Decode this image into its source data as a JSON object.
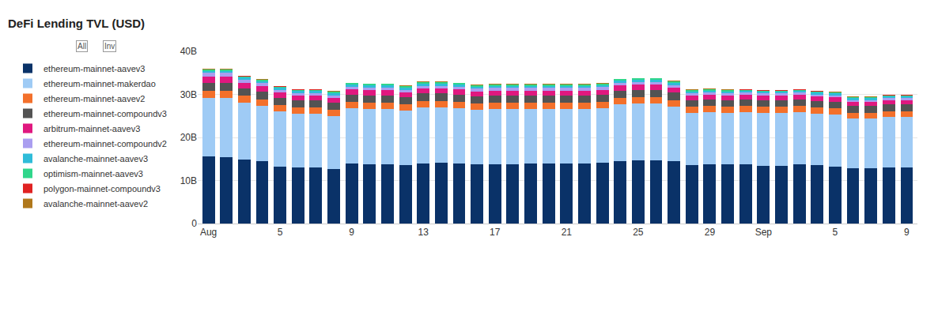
{
  "chart_data": {
    "type": "bar",
    "title": "DeFi Lending TVL (USD)",
    "stacked": true,
    "grid": true,
    "legend": "left",
    "annotations": [
      "All",
      "Inv"
    ],
    "categories": [
      "Aug",
      null,
      null,
      null,
      "5",
      null,
      null,
      null,
      "9",
      null,
      null,
      null,
      "13",
      null,
      null,
      null,
      "17",
      null,
      null,
      null,
      "21",
      null,
      null,
      null,
      "25",
      null,
      null,
      null,
      "29",
      null,
      null,
      "Sep",
      null,
      null,
      null,
      "5",
      null,
      null,
      null,
      "9"
    ],
    "ylim": [
      0,
      40000000000.0
    ],
    "yticks": [
      0,
      {
        "value": 10000000000.0,
        "label": "10B"
      },
      {
        "value": 20000000000.0,
        "label": "20B"
      },
      {
        "value": 30000000000.0,
        "label": "30B"
      },
      {
        "value": 40000000000.0,
        "label": "40B"
      }
    ],
    "series": [
      {
        "name": "ethereum-mainnet-aavev3",
        "color": "#0a3268",
        "values": [
          15600000000.0,
          15500000000.0,
          14900000000.0,
          14500000000.0,
          13200000000.0,
          13000000000.0,
          13000000000.0,
          12700000000.0,
          13900000000.0,
          13800000000.0,
          13800000000.0,
          13600000000.0,
          14000000000.0,
          14100000000.0,
          14000000000.0,
          13800000000.0,
          13800000000.0,
          13800000000.0,
          13900000000.0,
          14000000000.0,
          14000000000.0,
          14000000000.0,
          14100000000.0,
          14500000000.0,
          14700000000.0,
          14600000000.0,
          14500000000.0,
          13600000000.0,
          13700000000.0,
          13700000000.0,
          13800000000.0,
          13400000000.0,
          13400000000.0,
          13700000000.0,
          13500000000.0,
          13300000000.0,
          12800000000.0,
          12800000000.0,
          13000000000.0,
          13000000000.0
        ]
      },
      {
        "name": "ethereum-mainnet-makerdao",
        "color": "#9fcbf5",
        "values": [
          13600000000.0,
          13700000000.0,
          13200000000.0,
          12800000000.0,
          12900000000.0,
          12500000000.0,
          12500000000.0,
          12300000000.0,
          12900000000.0,
          12800000000.0,
          12800000000.0,
          12600000000.0,
          13000000000.0,
          12900000000.0,
          12800000000.0,
          12600000000.0,
          12800000000.0,
          12800000000.0,
          12700000000.0,
          12600000000.0,
          12600000000.0,
          12600000000.0,
          12700000000.0,
          13200000000.0,
          13200000000.0,
          13300000000.0,
          12700000000.0,
          12100000000.0,
          12200000000.0,
          12000000000.0,
          12100000000.0,
          12300000000.0,
          12300000000.0,
          12200000000.0,
          12000000000.0,
          12000000000.0,
          11600000000.0,
          11600000000.0,
          11800000000.0,
          11800000000.0
        ]
      },
      {
        "name": "ethereum-mainnet-aavev2",
        "color": "#f3702b",
        "values": [
          1700000000.0,
          1700000000.0,
          1600000000.0,
          1600000000.0,
          1500000000.0,
          1500000000.0,
          1500000000.0,
          1500000000.0,
          1500000000.0,
          1500000000.0,
          1500000000.0,
          1500000000.0,
          1500000000.0,
          1500000000.0,
          1500000000.0,
          1500000000.0,
          1500000000.0,
          1500000000.0,
          1500000000.0,
          1500000000.0,
          1500000000.0,
          1500000000.0,
          1500000000.0,
          1500000000.0,
          1500000000.0,
          1500000000.0,
          1500000000.0,
          1400000000.0,
          1400000000.0,
          1400000000.0,
          1400000000.0,
          1400000000.0,
          1400000000.0,
          1400000000.0,
          1400000000.0,
          1400000000.0,
          1300000000.0,
          1300000000.0,
          1300000000.0,
          1300000000.0
        ]
      },
      {
        "name": "ethereum-mainnet-compoundv3",
        "color": "#535353",
        "values": [
          1800000000.0,
          1800000000.0,
          1700000000.0,
          1700000000.0,
          1600000000.0,
          1600000000.0,
          1600000000.0,
          1600000000.0,
          1700000000.0,
          1700000000.0,
          1700000000.0,
          1700000000.0,
          1700000000.0,
          1700000000.0,
          1700000000.0,
          1700000000.0,
          1700000000.0,
          1700000000.0,
          1700000000.0,
          1700000000.0,
          1700000000.0,
          1700000000.0,
          1700000000.0,
          1700000000.0,
          1700000000.0,
          1700000000.0,
          1700000000.0,
          1600000000.0,
          1600000000.0,
          1600000000.0,
          1600000000.0,
          1600000000.0,
          1600000000.0,
          1600000000.0,
          1600000000.0,
          1600000000.0,
          1600000000.0,
          1600000000.0,
          1600000000.0,
          1600000000.0
        ]
      },
      {
        "name": "arbitrum-mainnet-aavev3",
        "color": "#e0187f",
        "values": [
          1500000000.0,
          1500000000.0,
          1300000000.0,
          1300000000.0,
          1200000000.0,
          1100000000.0,
          1100000000.0,
          1100000000.0,
          1200000000.0,
          1200000000.0,
          1200000000.0,
          1100000000.0,
          1200000000.0,
          1200000000.0,
          1200000000.0,
          1100000000.0,
          1100000000.0,
          1100000000.0,
          1100000000.0,
          1100000000.0,
          1100000000.0,
          1100000000.0,
          1100000000.0,
          1200000000.0,
          1200000000.0,
          1200000000.0,
          1200000000.0,
          1000000000.0,
          1000000000.0,
          1000000000.0,
          1000000000.0,
          1000000000.0,
          1000000000.0,
          1000000000.0,
          1000000000.0,
          1000000000.0,
          900000000.0,
          900000000.0,
          900000000.0,
          900000000.0
        ]
      },
      {
        "name": "ethereum-mainnet-compoundv2",
        "color": "#aa9ef0",
        "values": [
          800000000.0,
          800000000.0,
          700000000.0,
          700000000.0,
          600000000.0,
          600000000.0,
          600000000.0,
          600000000.0,
          600000000.0,
          600000000.0,
          600000000.0,
          600000000.0,
          600000000.0,
          600000000.0,
          600000000.0,
          600000000.0,
          600000000.0,
          600000000.0,
          600000000.0,
          600000000.0,
          600000000.0,
          600000000.0,
          600000000.0,
          600000000.0,
          600000000.0,
          600000000.0,
          600000000.0,
          500000000.0,
          500000000.0,
          500000000.0,
          500000000.0,
          500000000.0,
          500000000.0,
          500000000.0,
          500000000.0,
          500000000.0,
          500000000.0,
          500000000.0,
          500000000.0,
          500000000.0
        ]
      },
      {
        "name": "avalanche-mainnet-aavev3",
        "color": "#2fbcd9",
        "values": [
          500000000.0,
          500000000.0,
          500000000.0,
          500000000.0,
          500000000.0,
          500000000.0,
          500000000.0,
          500000000.0,
          500000000.0,
          500000000.0,
          500000000.0,
          500000000.0,
          500000000.0,
          500000000.0,
          500000000.0,
          500000000.0,
          500000000.0,
          500000000.0,
          500000000.0,
          500000000.0,
          500000000.0,
          500000000.0,
          500000000.0,
          500000000.0,
          500000000.0,
          500000000.0,
          500000000.0,
          500000000.0,
          500000000.0,
          500000000.0,
          400000000.0,
          400000000.0,
          400000000.0,
          400000000.0,
          400000000.0,
          400000000.0,
          400000000.0,
          400000000.0,
          400000000.0,
          400000000.0
        ]
      },
      {
        "name": "optimism-mainnet-aavev3",
        "color": "#30d68b",
        "values": [
          300000000.0,
          300000000.0,
          300000000.0,
          300000000.0,
          300000000.0,
          300000000.0,
          300000000.0,
          300000000.0,
          300000000.0,
          300000000.0,
          300000000.0,
          300000000.0,
          300000000.0,
          300000000.0,
          300000000.0,
          300000000.0,
          300000000.0,
          300000000.0,
          300000000.0,
          300000000.0,
          300000000.0,
          300000000.0,
          300000000.0,
          300000000.0,
          300000000.0,
          300000000.0,
          300000000.0,
          300000000.0,
          300000000.0,
          300000000.0,
          300000000.0,
          300000000.0,
          300000000.0,
          300000000.0,
          300000000.0,
          300000000.0,
          300000000.0,
          300000000.0,
          300000000.0,
          300000000.0
        ]
      },
      {
        "name": "polygon-mainnet-compoundv3",
        "color": "#e02222",
        "values": [
          50000000.0,
          50000000.0,
          50000000.0,
          50000000.0,
          50000000.0,
          50000000.0,
          50000000.0,
          50000000.0,
          50000000.0,
          50000000.0,
          50000000.0,
          50000000.0,
          50000000.0,
          50000000.0,
          50000000.0,
          50000000.0,
          50000000.0,
          50000000.0,
          50000000.0,
          50000000.0,
          50000000.0,
          50000000.0,
          50000000.0,
          50000000.0,
          50000000.0,
          50000000.0,
          50000000.0,
          50000000.0,
          50000000.0,
          50000000.0,
          50000000.0,
          50000000.0,
          50000000.0,
          50000000.0,
          50000000.0,
          50000000.0,
          50000000.0,
          50000000.0,
          50000000.0,
          50000000.0
        ]
      },
      {
        "name": "avalanche-mainnet-aavev2",
        "color": "#b0781b",
        "values": [
          100000000.0,
          100000000.0,
          100000000.0,
          100000000.0,
          100000000.0,
          100000000.0,
          100000000.0,
          100000000.0,
          100000000.0,
          100000000.0,
          100000000.0,
          100000000.0,
          100000000.0,
          100000000.0,
          100000000.0,
          100000000.0,
          100000000.0,
          100000000.0,
          100000000.0,
          100000000.0,
          100000000.0,
          100000000.0,
          100000000.0,
          100000000.0,
          100000000.0,
          100000000.0,
          100000000.0,
          100000000.0,
          100000000.0,
          100000000.0,
          100000000.0,
          100000000.0,
          100000000.0,
          100000000.0,
          100000000.0,
          100000000.0,
          100000000.0,
          100000000.0,
          100000000.0,
          100000000.0
        ]
      }
    ]
  }
}
